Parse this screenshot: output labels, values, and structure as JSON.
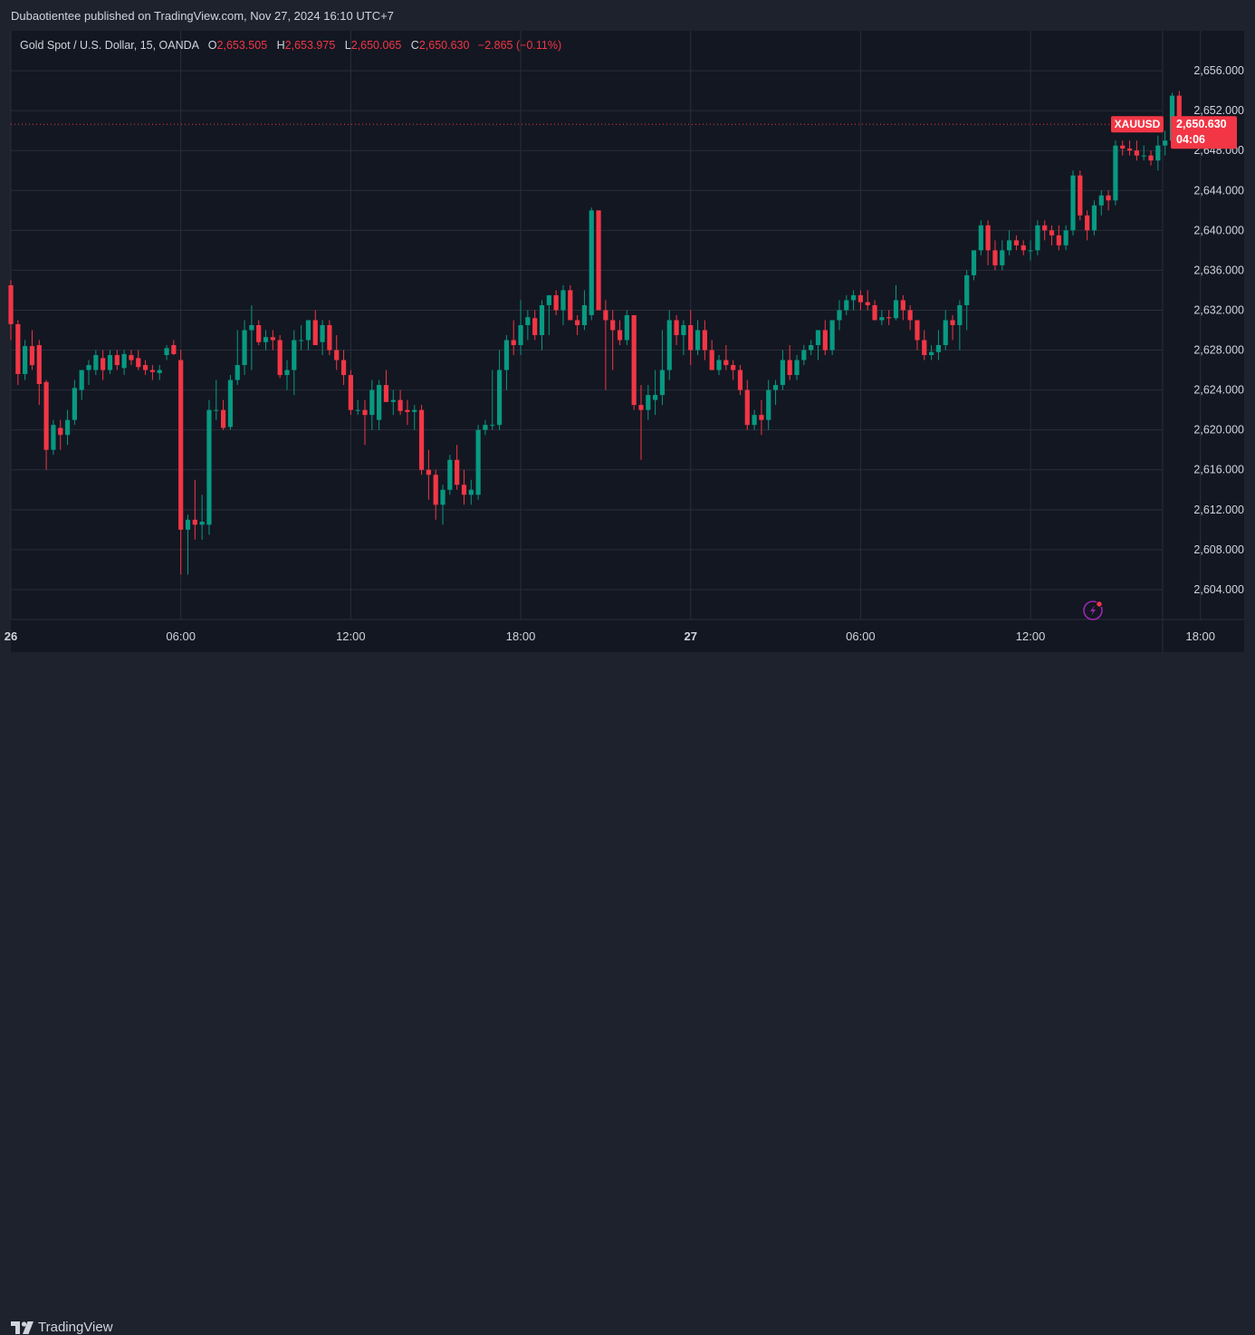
{
  "header": {
    "published": "Dubaotientee published on TradingView.com, Nov 27, 2024 16:10 UTC+7"
  },
  "legend": {
    "instrument": "Gold Spot / U.S. Dollar, 15, OANDA",
    "o_label": "O",
    "o": "2,653.505",
    "h_label": "H",
    "h": "2,653.975",
    "l_label": "L",
    "l": "2,650.065",
    "c_label": "C",
    "c": "2,650.630",
    "change": "−2.865 (−0.11%)"
  },
  "price_badge": {
    "symbol": "XAUUSD",
    "price": "2,650.630",
    "countdown": "04:06"
  },
  "brand": {
    "name": "TradingView"
  },
  "colors": {
    "up": "#089981",
    "down": "#f23645",
    "background": "#131722",
    "grid": "#2a2e39",
    "text": "#d1d4dc"
  },
  "chart_data": {
    "type": "candlestick",
    "ylim": [
      2601,
      2660
    ],
    "y_ticks": [
      2604,
      2608,
      2612,
      2616,
      2620,
      2624,
      2628,
      2632,
      2636,
      2640,
      2644,
      2648,
      2652,
      2656
    ],
    "y_tick_labels": [
      "2,604.000",
      "2,608.000",
      "2,612.000",
      "2,616.000",
      "2,620.000",
      "2,624.000",
      "2,628.000",
      "2,632.000",
      "2,636.000",
      "2,640.000",
      "2,644.000",
      "2,648.000",
      "2,652.000",
      "2,656.000"
    ],
    "x_tick_labels": [
      {
        "bar": 0,
        "label": "26"
      },
      {
        "bar": 24,
        "label": "06:00"
      },
      {
        "bar": 48,
        "label": "12:00"
      },
      {
        "bar": 72,
        "label": "18:00"
      },
      {
        "bar": 96,
        "label": "27"
      },
      {
        "bar": 120,
        "label": "06:00"
      },
      {
        "bar": 144,
        "label": "12:00"
      },
      {
        "bar": 168,
        "label": "18:00"
      }
    ],
    "last_price": 2650.63,
    "candles": [
      [
        2634.5,
        2635,
        2629,
        2630.6
      ],
      [
        2630.6,
        2631,
        2624.5,
        2625.6
      ],
      [
        2625.6,
        2629,
        2625,
        2628.4
      ],
      [
        2628.4,
        2630,
        2626,
        2626.5
      ],
      [
        2628.5,
        2629,
        2622.5,
        2624.6
      ],
      [
        2624.8,
        2625,
        2616,
        2618
      ],
      [
        2618,
        2621,
        2617.5,
        2620.5
      ],
      [
        2620.2,
        2621,
        2618,
        2619.5
      ],
      [
        2619.5,
        2622,
        2618.5,
        2621
      ],
      [
        2621,
        2625,
        2620.5,
        2624.2
      ],
      [
        2624,
        2626,
        2623,
        2626
      ],
      [
        2626,
        2627,
        2624.5,
        2626.5
      ],
      [
        2626,
        2628,
        2625.5,
        2627.5
      ],
      [
        2627.2,
        2628,
        2625,
        2626
      ],
      [
        2626,
        2628,
        2625.6,
        2627.5
      ],
      [
        2627.5,
        2628,
        2626,
        2626.5
      ],
      [
        2626.2,
        2628,
        2625.5,
        2627.6
      ],
      [
        2627.5,
        2628,
        2626.5,
        2627
      ],
      [
        2627.2,
        2628,
        2626,
        2626.3
      ],
      [
        2626.5,
        2627,
        2625.5,
        2626
      ],
      [
        2626,
        2626.5,
        2625,
        2625.8
      ],
      [
        2625.7,
        2626.5,
        2625,
        2626
      ],
      [
        2627.5,
        2628.5,
        2627,
        2628.2
      ],
      [
        2628.5,
        2629,
        2627.5,
        2627.6
      ],
      [
        2627,
        2628,
        2605.5,
        2610
      ],
      [
        2610,
        2611.5,
        2605.5,
        2611
      ],
      [
        2611,
        2615,
        2609,
        2610.5
      ],
      [
        2610.5,
        2613.5,
        2609,
        2610.8
      ],
      [
        2610.5,
        2623,
        2609.5,
        2622
      ],
      [
        2622,
        2625,
        2621,
        2622
      ],
      [
        2622,
        2623,
        2620,
        2620.2
      ],
      [
        2620.3,
        2625.5,
        2620,
        2625
      ],
      [
        2625,
        2630,
        2624.5,
        2626.5
      ],
      [
        2626.5,
        2631,
        2625.5,
        2630
      ],
      [
        2630,
        2632.5,
        2626,
        2630.5
      ],
      [
        2630.5,
        2631,
        2628.5,
        2628.8
      ],
      [
        2628.8,
        2630,
        2628,
        2629.3
      ],
      [
        2629.3,
        2630,
        2628,
        2629
      ],
      [
        2629,
        2629.5,
        2625.2,
        2625.5
      ],
      [
        2625.5,
        2627,
        2624,
        2626
      ],
      [
        2626,
        2630,
        2623.5,
        2629
      ],
      [
        2629,
        2630.5,
        2628,
        2629
      ],
      [
        2629,
        2631,
        2628,
        2631
      ],
      [
        2631,
        2632,
        2628.5,
        2628.5
      ],
      [
        2628.8,
        2631,
        2627.5,
        2630.5
      ],
      [
        2630.5,
        2631,
        2627.5,
        2628
      ],
      [
        2628,
        2629.5,
        2626,
        2627
      ],
      [
        2627,
        2628,
        2624.5,
        2625.5
      ],
      [
        2625.5,
        2626,
        2621.5,
        2622
      ],
      [
        2622,
        2623,
        2621.5,
        2622
      ],
      [
        2622,
        2623,
        2618.5,
        2621.5
      ],
      [
        2621.5,
        2625,
        2620,
        2624
      ],
      [
        2621,
        2625,
        2620,
        2624.5
      ],
      [
        2624.5,
        2626,
        2623,
        2622.8
      ],
      [
        2622.8,
        2624,
        2621.5,
        2623
      ],
      [
        2623,
        2624,
        2621.5,
        2621.9
      ],
      [
        2622,
        2623,
        2620.5,
        2621.8
      ],
      [
        2621.8,
        2622.5,
        2620,
        2622
      ],
      [
        2622,
        2622.5,
        2615.5,
        2616
      ],
      [
        2616,
        2618,
        2613,
        2615.5
      ],
      [
        2615.5,
        2616,
        2611,
        2612.5
      ],
      [
        2612.5,
        2614.5,
        2610.5,
        2614
      ],
      [
        2614,
        2617.5,
        2613.5,
        2617
      ],
      [
        2617,
        2618.5,
        2614,
        2614.5
      ],
      [
        2614.5,
        2616,
        2612.5,
        2613.5
      ],
      [
        2613.5,
        2615,
        2612.5,
        2614
      ],
      [
        2613.5,
        2620.5,
        2613,
        2620
      ],
      [
        2620,
        2621,
        2619.5,
        2620.5
      ],
      [
        2620.5,
        2626,
        2620,
        2620.5
      ],
      [
        2620.5,
        2628,
        2620,
        2626
      ],
      [
        2626,
        2629.5,
        2624,
        2629
      ],
      [
        2629,
        2631,
        2627.5,
        2628.5
      ],
      [
        2628.5,
        2633,
        2627.5,
        2630.5
      ],
      [
        2630.5,
        2632,
        2629,
        2631.3
      ],
      [
        2631.2,
        2632,
        2629,
        2629.5
      ],
      [
        2629.5,
        2633,
        2628,
        2632.5
      ],
      [
        2632.5,
        2633.5,
        2629.5,
        2633.5
      ],
      [
        2633.5,
        2634,
        2631.5,
        2632
      ],
      [
        2632,
        2634.5,
        2630.5,
        2634
      ],
      [
        2634,
        2634.5,
        2631,
        2631
      ],
      [
        2631,
        2631.5,
        2629.5,
        2630.5
      ],
      [
        2630.5,
        2634,
        2630,
        2632.5
      ],
      [
        2631.5,
        2642.3,
        2631,
        2642
      ],
      [
        2642,
        2642,
        2632.5,
        2632
      ],
      [
        2632,
        2633,
        2624,
        2631
      ],
      [
        2631,
        2632,
        2626,
        2630
      ],
      [
        2630,
        2631,
        2628.5,
        2629
      ],
      [
        2629,
        2632,
        2628.5,
        2631.5
      ],
      [
        2631.5,
        2631.5,
        2622,
        2622.5
      ],
      [
        2622.5,
        2624.5,
        2617,
        2622
      ],
      [
        2622,
        2624.5,
        2621,
        2623.5
      ],
      [
        2623,
        2626,
        2621.5,
        2623.5
      ],
      [
        2623.5,
        2630,
        2622.5,
        2626
      ],
      [
        2626,
        2632,
        2625,
        2631
      ],
      [
        2631,
        2631.5,
        2628.5,
        2629.5
      ],
      [
        2629.5,
        2631,
        2627.5,
        2630.5
      ],
      [
        2630.5,
        2632,
        2626.5,
        2628
      ],
      [
        2628,
        2631,
        2627.5,
        2630
      ],
      [
        2630,
        2631,
        2627,
        2628
      ],
      [
        2628,
        2629,
        2626,
        2626
      ],
      [
        2626,
        2627.5,
        2625.5,
        2627
      ],
      [
        2627,
        2628.5,
        2626,
        2626.5
      ],
      [
        2626.5,
        2627,
        2625,
        2626
      ],
      [
        2626,
        2626.5,
        2623.5,
        2624
      ],
      [
        2624,
        2625,
        2620,
        2620.5
      ],
      [
        2620.5,
        2622,
        2620,
        2621.5
      ],
      [
        2621.5,
        2623,
        2619.5,
        2621
      ],
      [
        2621,
        2625,
        2620,
        2624
      ],
      [
        2624,
        2625,
        2622.5,
        2624.5
      ],
      [
        2624.5,
        2628,
        2624,
        2627
      ],
      [
        2627,
        2628.5,
        2625,
        2625.5
      ],
      [
        2625.5,
        2627.5,
        2625,
        2627
      ],
      [
        2627,
        2628.5,
        2626.5,
        2628
      ],
      [
        2628,
        2629,
        2627.5,
        2628.5
      ],
      [
        2628.5,
        2630,
        2627,
        2630
      ],
      [
        2630,
        2631,
        2627.5,
        2628
      ],
      [
        2628,
        2631,
        2627.5,
        2631
      ],
      [
        2631,
        2633,
        2630,
        2632
      ],
      [
        2632,
        2633.5,
        2631.5,
        2633
      ],
      [
        2633,
        2634,
        2632,
        2633.5
      ],
      [
        2633.5,
        2634,
        2632,
        2632.8
      ],
      [
        2632.8,
        2634,
        2632,
        2632.5
      ],
      [
        2632.5,
        2633,
        2631,
        2631
      ],
      [
        2631,
        2632,
        2630.5,
        2631.3
      ],
      [
        2631.3,
        2632,
        2630.5,
        2631.2
      ],
      [
        2631.2,
        2634.5,
        2631,
        2633
      ],
      [
        2633,
        2633.5,
        2631,
        2632
      ],
      [
        2632,
        2632.5,
        2630,
        2631
      ],
      [
        2631,
        2631,
        2628,
        2629
      ],
      [
        2629,
        2630,
        2627,
        2627.5
      ],
      [
        2627.5,
        2628.5,
        2627,
        2627.8
      ],
      [
        2627.8,
        2630,
        2627,
        2628.5
      ],
      [
        2628.5,
        2632,
        2628,
        2631
      ],
      [
        2631,
        2631.5,
        2629,
        2630.5
      ],
      [
        2630.5,
        2633,
        2628,
        2632.5
      ],
      [
        2632.5,
        2636,
        2630,
        2635.5
      ],
      [
        2635.5,
        2638,
        2635,
        2638
      ],
      [
        2638,
        2641,
        2637.5,
        2640.5
      ],
      [
        2640.5,
        2641,
        2636.5,
        2638
      ],
      [
        2638,
        2639,
        2636,
        2636.5
      ],
      [
        2636.5,
        2639,
        2636,
        2638
      ],
      [
        2638,
        2640,
        2637.5,
        2639
      ],
      [
        2639,
        2639.5,
        2638,
        2638.5
      ],
      [
        2638.5,
        2639,
        2637.5,
        2638
      ],
      [
        2638,
        2639,
        2637,
        2638
      ],
      [
        2638,
        2641,
        2637.5,
        2640.5
      ],
      [
        2640.5,
        2641,
        2639,
        2640
      ],
      [
        2640,
        2640.5,
        2638.5,
        2639.5
      ],
      [
        2639.5,
        2640.5,
        2638,
        2638.5
      ],
      [
        2638.5,
        2640.5,
        2638,
        2640
      ],
      [
        2640,
        2646,
        2639.5,
        2645.5
      ],
      [
        2645.5,
        2646,
        2641,
        2641.5
      ],
      [
        2641.5,
        2642,
        2639,
        2640
      ],
      [
        2640,
        2643,
        2639.5,
        2642.5
      ],
      [
        2642.5,
        2644,
        2641.5,
        2643.5
      ],
      [
        2643.5,
        2644,
        2642,
        2643
      ],
      [
        2643,
        2649,
        2642.5,
        2648.5
      ],
      [
        2648.5,
        2649,
        2647.5,
        2648.2
      ],
      [
        2648.2,
        2649,
        2647.5,
        2648
      ],
      [
        2648,
        2649,
        2647,
        2647.5
      ],
      [
        2647.5,
        2648.5,
        2647,
        2647.5
      ],
      [
        2647.5,
        2648,
        2646.5,
        2647
      ],
      [
        2647,
        2649.5,
        2646,
        2648.5
      ],
      [
        2648.5,
        2650,
        2647.5,
        2649
      ],
      [
        2649,
        2653.8,
        2648.5,
        2653.5
      ],
      [
        2653.5,
        2653.975,
        2650.065,
        2650.63
      ]
    ]
  }
}
